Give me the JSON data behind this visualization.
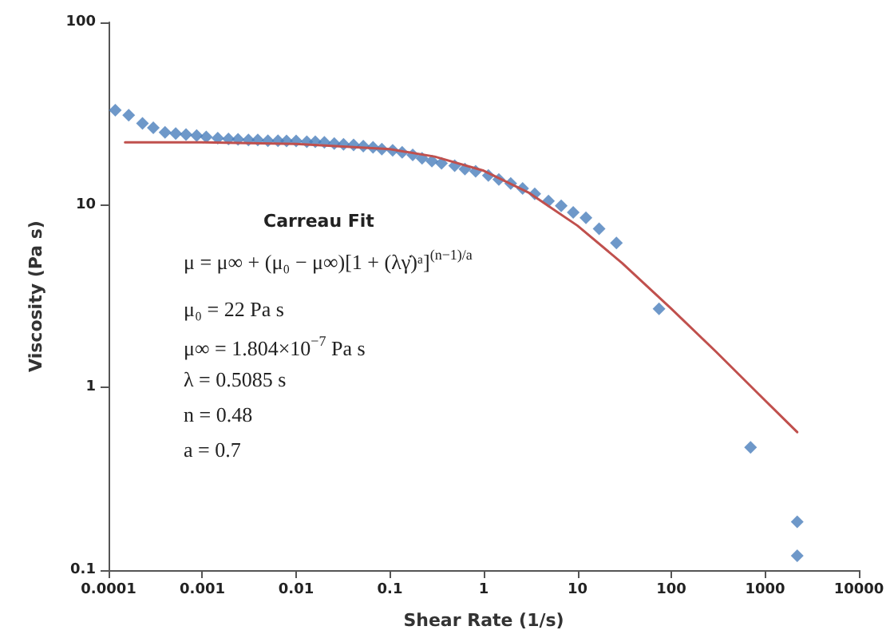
{
  "chart_data": {
    "type": "scatter",
    "xlabel": "Shear Rate (1/s)",
    "ylabel": "Viscosity (Pa s)",
    "log": "xy",
    "grid": false,
    "marker": "diamond",
    "xlim": [
      0.0001,
      10000
    ],
    "xticks": [
      {
        "value": 0.0001,
        "label": "0.0001"
      },
      {
        "value": 0.001,
        "label": "0.001"
      },
      {
        "value": 0.01,
        "label": "0.01"
      },
      {
        "value": 0.1,
        "label": "0.1"
      },
      {
        "value": 1,
        "label": "1"
      },
      {
        "value": 10,
        "label": "10"
      },
      {
        "value": 100,
        "label": "100"
      },
      {
        "value": 1000,
        "label": "1000"
      },
      {
        "value": 10000,
        "label": "10000"
      }
    ],
    "ylim": [
      0.1,
      100
    ],
    "yticks": [
      {
        "value": 0.1,
        "label": "0.1"
      },
      {
        "value": 1,
        "label": "1"
      },
      {
        "value": 10,
        "label": "10"
      },
      {
        "value": 100,
        "label": "100"
      }
    ],
    "series": [
      {
        "color": "#4a7ebb",
        "x": [
          0.000118,
          0.000164,
          0.00023,
          0.0003,
          0.0004,
          0.00052,
          0.00067,
          0.00087,
          0.0011,
          0.00146,
          0.0019,
          0.0024,
          0.0031,
          0.0039,
          0.005,
          0.0064,
          0.0079,
          0.01,
          0.013,
          0.016,
          0.02,
          0.0255,
          0.032,
          0.041,
          0.052,
          0.066,
          0.082,
          0.107,
          0.135,
          0.175,
          0.22,
          0.28,
          0.355,
          0.49,
          0.63,
          0.82,
          1.12,
          1.45,
          1.94,
          2.6,
          3.5,
          4.9,
          6.7,
          9,
          12.3,
          17,
          26,
          74,
          700,
          2200,
          2200
        ],
        "values": [
          33,
          31,
          28,
          26.5,
          25,
          24.6,
          24.3,
          24,
          23.6,
          23.2,
          23,
          22.9,
          22.7,
          22.7,
          22.5,
          22.5,
          22.4,
          22.4,
          22.2,
          22.2,
          22,
          21.7,
          21.5,
          21.3,
          21,
          20.7,
          20.2,
          19.9,
          19.4,
          18.8,
          18,
          17.4,
          16.9,
          16.4,
          15.7,
          15.3,
          14.5,
          13.8,
          13.1,
          12.3,
          11.5,
          10.5,
          9.9,
          9.1,
          8.5,
          7.4,
          6.2,
          2.7,
          0.47,
          0.184,
          0.12
        ]
      },
      {
        "type": "line",
        "color": "#c0504d",
        "marker": "none",
        "x": [
          0.00015,
          0.001,
          0.01,
          0.1,
          0.3,
          1,
          3,
          10,
          30,
          100,
          300,
          1000,
          2200
        ],
        "values": [
          22,
          22,
          21.6,
          20.2,
          18.4,
          15.4,
          11.7,
          7.7,
          4.8,
          2.7,
          1.57,
          0.85,
          0.57
        ]
      }
    ],
    "annotations": [
      "Carreau Fit",
      "μ = μ∞ + (μ₀ − μ∞)[1 + (λγ̇)ᵃ]$^{(n−1)/a}$",
      "μ₀ = 22 Pa s",
      "μ∞ = 1.804×10$^{−7}$ Pa s",
      "λ = 0.5085 s",
      "n = 0.48",
      "a = 0.7"
    ]
  }
}
